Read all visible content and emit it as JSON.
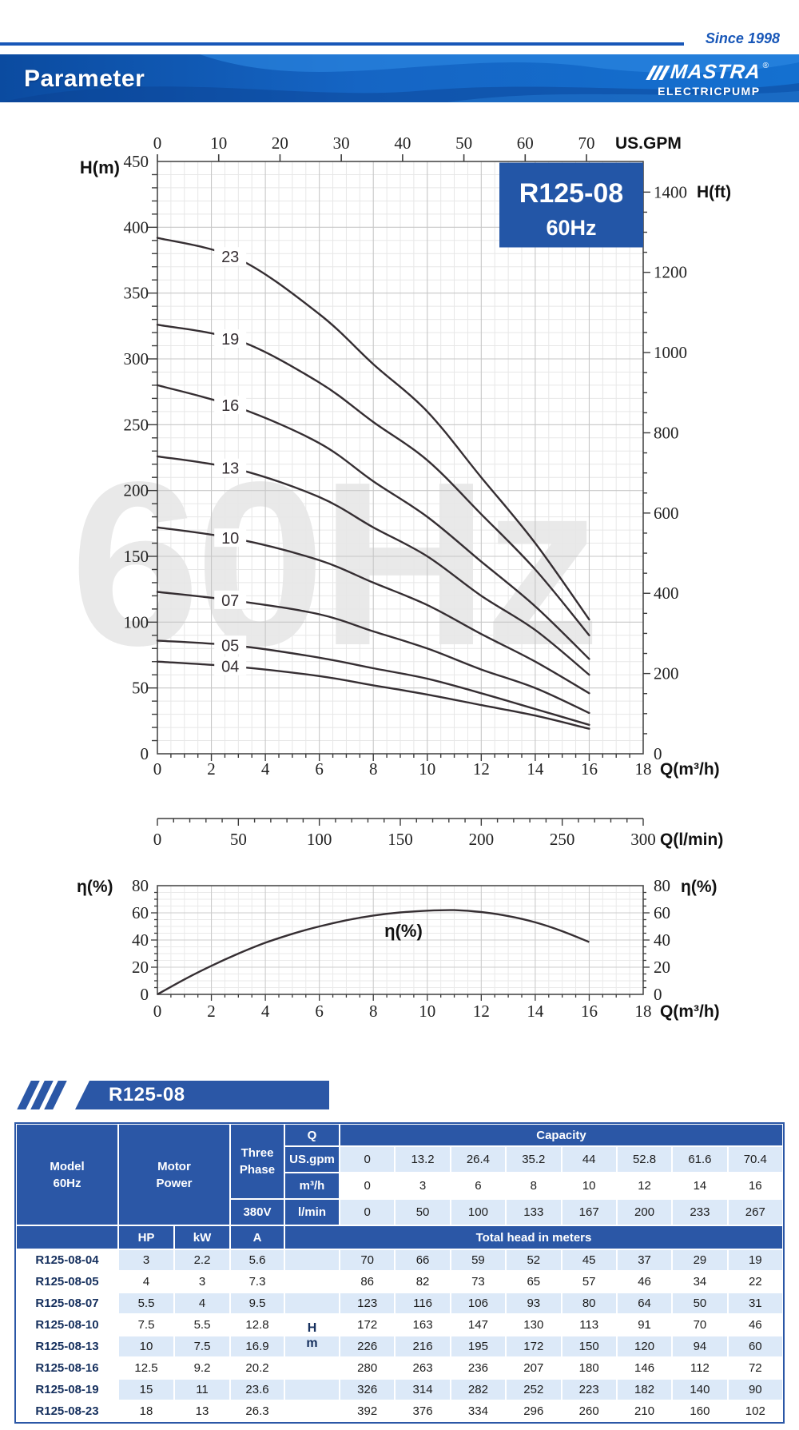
{
  "header": {
    "since": "Since 1998",
    "title": "Parameter",
    "logo": {
      "brand": "MASTRA",
      "registered": "®",
      "sub": "ELECTRICPUMP"
    }
  },
  "colors": {
    "accent_blue": "#2356a7",
    "table_blue": "#2b57a6",
    "pale_blue": "#dce9f8",
    "banner_blue_dark": "#0b4ba0",
    "banner_blue_light": "#1d7ad8",
    "since_blue": "#1857b8",
    "watermark_gray": "#e9e9e9",
    "curve_color": "#352e32"
  },
  "chart_data": {
    "type": "line",
    "title_box": {
      "model": "R125-08",
      "freq": "60Hz"
    },
    "watermark": "60Hz",
    "axes": {
      "x_bottom": {
        "label": "Q(m³/h)",
        "range": [
          0,
          18
        ],
        "ticks": [
          0,
          2,
          4,
          6,
          8,
          10,
          12,
          14,
          16,
          18
        ]
      },
      "x_top": {
        "label": "US.GPM",
        "ticks": [
          0,
          10,
          20,
          30,
          40,
          50,
          60,
          70
        ]
      },
      "y_left": {
        "label": "H(m)",
        "range": [
          0,
          450
        ],
        "ticks": [
          0,
          50,
          100,
          150,
          200,
          250,
          300,
          350,
          400,
          450
        ]
      },
      "y_right": {
        "label": "H(ft)",
        "ticks": [
          0,
          200,
          400,
          600,
          800,
          1000,
          1200,
          1400
        ]
      },
      "x_lmin": {
        "label": "Q(l/min)",
        "range": [
          0,
          300
        ],
        "ticks": [
          0,
          50,
          100,
          150,
          200,
          250,
          300
        ]
      }
    },
    "grid": true,
    "q_points": [
      0,
      3,
      6,
      8,
      10,
      12,
      14,
      16
    ],
    "series": [
      {
        "name": "04",
        "values": [
          70,
          66,
          59,
          52,
          45,
          37,
          29,
          19
        ]
      },
      {
        "name": "05",
        "values": [
          86,
          82,
          73,
          65,
          57,
          46,
          34,
          22
        ]
      },
      {
        "name": "07",
        "values": [
          123,
          116,
          106,
          93,
          80,
          64,
          50,
          31
        ]
      },
      {
        "name": "10",
        "values": [
          172,
          163,
          147,
          130,
          113,
          91,
          70,
          46
        ]
      },
      {
        "name": "13",
        "values": [
          226,
          216,
          195,
          172,
          150,
          120,
          94,
          60
        ]
      },
      {
        "name": "16",
        "values": [
          280,
          263,
          236,
          207,
          180,
          146,
          112,
          72
        ]
      },
      {
        "name": "19",
        "values": [
          326,
          314,
          282,
          252,
          223,
          182,
          140,
          90
        ]
      },
      {
        "name": "23",
        "values": [
          392,
          376,
          334,
          296,
          260,
          210,
          160,
          102
        ]
      }
    ],
    "efficiency": {
      "label": "η(%)",
      "x_label": "Q(m³/h)",
      "y_ticks": [
        0,
        20,
        40,
        60,
        80
      ],
      "y_range": [
        0,
        80
      ],
      "points": [
        [
          0,
          0
        ],
        [
          1,
          11
        ],
        [
          2,
          21
        ],
        [
          3,
          30
        ],
        [
          4,
          38
        ],
        [
          5,
          44.5
        ],
        [
          6,
          50
        ],
        [
          7,
          54.5
        ],
        [
          8,
          58
        ],
        [
          9,
          60.3
        ],
        [
          10,
          61.6
        ],
        [
          11,
          62
        ],
        [
          12,
          60.6
        ],
        [
          13,
          57.6
        ],
        [
          14,
          53
        ],
        [
          15,
          46.5
        ],
        [
          16,
          38.5
        ]
      ]
    }
  },
  "table": {
    "banner": "R125-08",
    "labels": {
      "model_1": "Model",
      "model_2": "60Hz",
      "motor_1": "Motor",
      "motor_2": "Power",
      "three_1": "Three",
      "three_2": "Phase",
      "q": "Q",
      "us_gpm": "US.gpm",
      "m3h": "m³/h",
      "volt": "380V",
      "lmin": "l/min",
      "capacity": "Capacity",
      "hp": "HP",
      "kw": "kW",
      "amp": "A",
      "total_head": "Total head in meters",
      "h": "H",
      "m": "m"
    },
    "capacity": {
      "us_gpm": [
        "0",
        "13.2",
        "26.4",
        "35.2",
        "44",
        "52.8",
        "61.6",
        "70.4"
      ],
      "m3h": [
        "0",
        "3",
        "6",
        "8",
        "10",
        "12",
        "14",
        "16"
      ],
      "lmin": [
        "0",
        "50",
        "100",
        "133",
        "167",
        "200",
        "233",
        "267"
      ]
    },
    "rows": [
      {
        "model": "R125-08-04",
        "hp": "3",
        "kw": "2.2",
        "a": "5.6",
        "heads": [
          "70",
          "66",
          "59",
          "52",
          "45",
          "37",
          "29",
          "19"
        ]
      },
      {
        "model": "R125-08-05",
        "hp": "4",
        "kw": "3",
        "a": "7.3",
        "heads": [
          "86",
          "82",
          "73",
          "65",
          "57",
          "46",
          "34",
          "22"
        ]
      },
      {
        "model": "R125-08-07",
        "hp": "5.5",
        "kw": "4",
        "a": "9.5",
        "heads": [
          "123",
          "116",
          "106",
          "93",
          "80",
          "64",
          "50",
          "31"
        ]
      },
      {
        "model": "R125-08-10",
        "hp": "7.5",
        "kw": "5.5",
        "a": "12.8",
        "heads": [
          "172",
          "163",
          "147",
          "130",
          "113",
          "91",
          "70",
          "46"
        ]
      },
      {
        "model": "R125-08-13",
        "hp": "10",
        "kw": "7.5",
        "a": "16.9",
        "heads": [
          "226",
          "216",
          "195",
          "172",
          "150",
          "120",
          "94",
          "60"
        ]
      },
      {
        "model": "R125-08-16",
        "hp": "12.5",
        "kw": "9.2",
        "a": "20.2",
        "heads": [
          "280",
          "263",
          "236",
          "207",
          "180",
          "146",
          "112",
          "72"
        ]
      },
      {
        "model": "R125-08-19",
        "hp": "15",
        "kw": "11",
        "a": "23.6",
        "heads": [
          "326",
          "314",
          "282",
          "252",
          "223",
          "182",
          "140",
          "90"
        ]
      },
      {
        "model": "R125-08-23",
        "hp": "18",
        "kw": "13",
        "a": "26.3",
        "heads": [
          "392",
          "376",
          "334",
          "296",
          "260",
          "210",
          "160",
          "102"
        ]
      }
    ]
  }
}
